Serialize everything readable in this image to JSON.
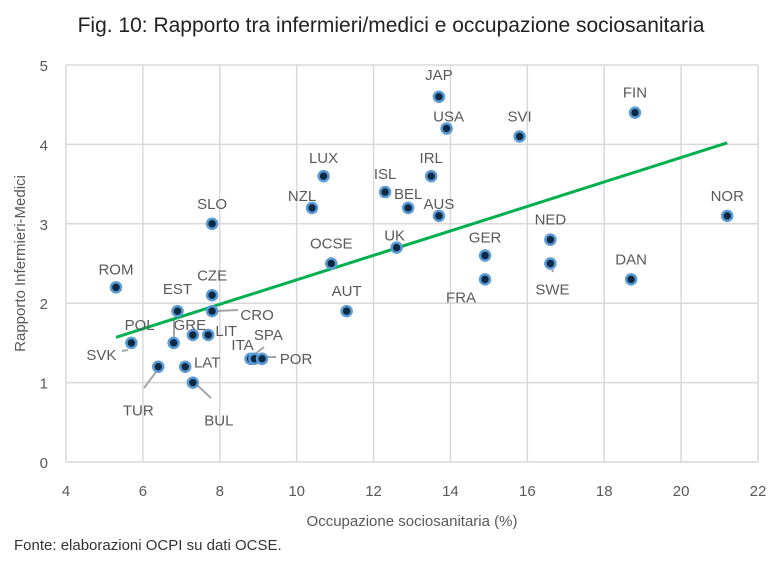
{
  "chart_data": {
    "type": "scatter",
    "title": "Fig. 10: Rapporto tra infermieri/medici e occupazione sociosanitaria",
    "xlabel": "Occupazione sociosanitaria (%)",
    "ylabel": "Rapporto Infermieri-Medici",
    "xlim": [
      4,
      22
    ],
    "ylim": [
      0,
      5
    ],
    "xticks": [
      4,
      6,
      8,
      10,
      12,
      14,
      16,
      18,
      20,
      22
    ],
    "yticks": [
      0,
      1,
      2,
      3,
      4,
      5
    ],
    "grid": true,
    "colors": {
      "point": "#0d2a45",
      "ring": "#5b9bd5",
      "trend": "#00b050",
      "grid": "#d9d9d9",
      "leader": "#a6a6a6"
    },
    "points": [
      {
        "label": "JAP",
        "x": 13.7,
        "y": 4.6
      },
      {
        "label": "USA",
        "x": 13.9,
        "y": 4.2
      },
      {
        "label": "SVI",
        "x": 15.8,
        "y": 4.1
      },
      {
        "label": "FIN",
        "x": 18.8,
        "y": 4.4
      },
      {
        "label": "LUX",
        "x": 10.7,
        "y": 3.6
      },
      {
        "label": "ISL",
        "x": 12.3,
        "y": 3.4
      },
      {
        "label": "IRL",
        "x": 13.5,
        "y": 3.6
      },
      {
        "label": "BEL",
        "x": 12.9,
        "y": 3.2
      },
      {
        "label": "AUS",
        "x": 13.7,
        "y": 3.1
      },
      {
        "label": "NZL",
        "x": 10.4,
        "y": 3.2
      },
      {
        "label": "SLO",
        "x": 7.8,
        "y": 3.0
      },
      {
        "label": "NOR",
        "x": 21.2,
        "y": 3.1
      },
      {
        "label": "NED",
        "x": 16.6,
        "y": 2.8
      },
      {
        "label": "UK",
        "x": 12.6,
        "y": 2.7
      },
      {
        "label": "GER",
        "x": 14.9,
        "y": 2.6
      },
      {
        "label": "OCSE",
        "x": 10.9,
        "y": 2.5
      },
      {
        "label": "SWE",
        "x": 16.6,
        "y": 2.5
      },
      {
        "label": "FRA",
        "x": 14.9,
        "y": 2.3
      },
      {
        "label": "DAN",
        "x": 18.7,
        "y": 2.3
      },
      {
        "label": "ROM",
        "x": 5.3,
        "y": 2.2
      },
      {
        "label": "CZE",
        "x": 7.8,
        "y": 2.1
      },
      {
        "label": "EST",
        "x": 6.9,
        "y": 1.9
      },
      {
        "label": "CRO",
        "x": 7.8,
        "y": 1.9
      },
      {
        "label": "AUT",
        "x": 11.3,
        "y": 1.9
      },
      {
        "label": "POL",
        "x": 6.8,
        "y": 1.5
      },
      {
        "label": "GRE",
        "x": 7.3,
        "y": 1.6
      },
      {
        "label": "LIT",
        "x": 7.7,
        "y": 1.6
      },
      {
        "label": "SVK",
        "x": 5.7,
        "y": 1.5
      },
      {
        "label": "ITA",
        "x": 8.8,
        "y": 1.3
      },
      {
        "label": "SPA",
        "x": 8.9,
        "y": 1.3
      },
      {
        "label": "POR",
        "x": 9.1,
        "y": 1.3
      },
      {
        "label": "TUR",
        "x": 6.4,
        "y": 1.2
      },
      {
        "label": "LAT",
        "x": 7.1,
        "y": 1.2
      },
      {
        "label": "BUL",
        "x": 7.3,
        "y": 1.0
      }
    ],
    "trendline": {
      "x": [
        5.3,
        21.2
      ],
      "y": [
        1.57,
        4.02
      ]
    }
  },
  "source": "Fonte: elaborazioni OCPI su dati OCSE."
}
